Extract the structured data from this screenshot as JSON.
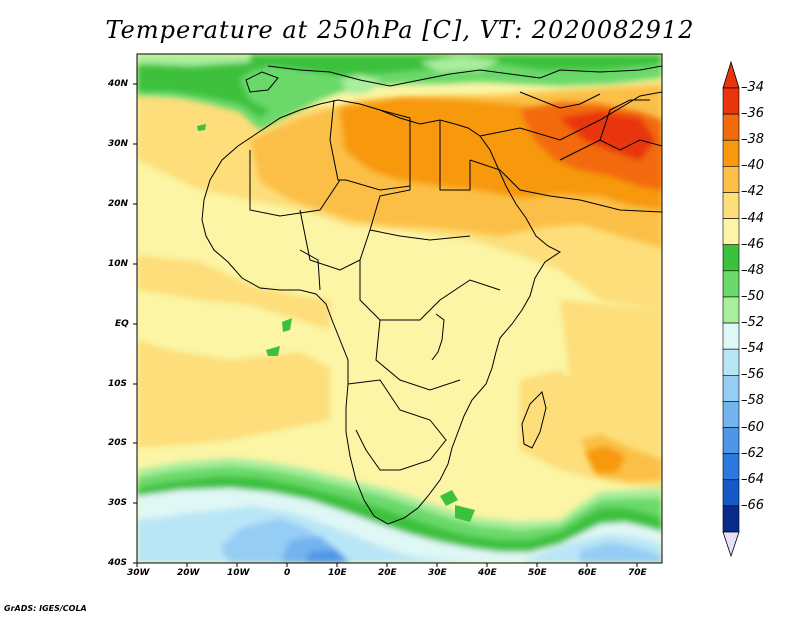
{
  "title": "Temperature at 250hPa [C], VT: 2020082912",
  "credit": "GrADS: IGES/COLA",
  "map": {
    "variable": "Temperature at 250hPa",
    "units": "C",
    "lon_range": [
      -30,
      75
    ],
    "lat_range": [
      -40,
      45
    ],
    "x_ticks": [
      "30W",
      "20W",
      "10W",
      "0",
      "10E",
      "20E",
      "30E",
      "40E",
      "50E",
      "60E",
      "70E"
    ],
    "y_ticks": [
      "40N",
      "30N",
      "20N",
      "10N",
      "EQ",
      "10S",
      "20S",
      "30S",
      "40S"
    ]
  },
  "colorbar": {
    "labels": [
      "-34",
      "-36",
      "-38",
      "-40",
      "-42",
      "-44",
      "-46",
      "-48",
      "-50",
      "-52",
      "-54",
      "-56",
      "-58",
      "-60",
      "-62",
      "-64",
      "-66"
    ],
    "colors": [
      "#e9340c",
      "#f26a0b",
      "#f7980d",
      "#fbbf47",
      "#fdde7a",
      "#fbf5a5",
      "#3cc13c",
      "#6bd96b",
      "#a9ee9d",
      "#dff7f5",
      "#b9e6f6",
      "#96cdf4",
      "#73b3ee",
      "#4f96e7",
      "#2d78dd",
      "#1659c9",
      "#0a2a8c"
    ],
    "over_color": "#e9340c",
    "under_color": "#e6e0f8"
  }
}
